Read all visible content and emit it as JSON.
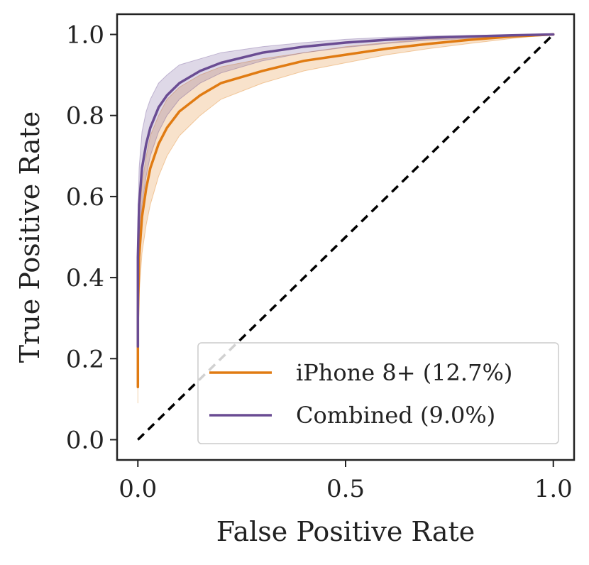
{
  "chart_data": {
    "type": "line",
    "title": "",
    "xlabel": "False Positive Rate",
    "ylabel": "True Positive Rate",
    "xlim": [
      -0.05,
      1.05
    ],
    "ylim": [
      -0.05,
      1.05
    ],
    "xticks": [
      0.0,
      0.5,
      1.0
    ],
    "xtick_labels": [
      "0.0",
      "0.5",
      "1.0"
    ],
    "yticks": [
      0.0,
      0.2,
      0.4,
      0.6,
      0.8,
      1.0
    ],
    "ytick_labels": [
      "0.0",
      "0.2",
      "0.4",
      "0.6",
      "0.8",
      "1.0"
    ],
    "grid": false,
    "legend_position": "lower-right",
    "reference_line": {
      "style": "dashed",
      "color": "#000000",
      "x": [
        0,
        1
      ],
      "y": [
        0,
        1
      ]
    },
    "series": [
      {
        "name": "iPhone 8+ (12.7%)",
        "color": "#e07b12",
        "x": [
          0.0,
          0.0,
          0.003,
          0.01,
          0.02,
          0.03,
          0.05,
          0.07,
          0.1,
          0.15,
          0.2,
          0.3,
          0.4,
          0.5,
          0.6,
          0.7,
          0.8,
          0.9,
          1.0
        ],
        "y": [
          0.13,
          0.3,
          0.45,
          0.55,
          0.62,
          0.67,
          0.73,
          0.77,
          0.81,
          0.85,
          0.88,
          0.91,
          0.935,
          0.95,
          0.965,
          0.977,
          0.987,
          0.995,
          1.0
        ],
        "lower": [
          0.09,
          0.22,
          0.36,
          0.46,
          0.53,
          0.58,
          0.65,
          0.7,
          0.75,
          0.8,
          0.84,
          0.88,
          0.91,
          0.93,
          0.95,
          0.965,
          0.978,
          0.99,
          1.0
        ],
        "upper": [
          0.17,
          0.38,
          0.53,
          0.63,
          0.7,
          0.75,
          0.8,
          0.84,
          0.87,
          0.9,
          0.92,
          0.94,
          0.955,
          0.97,
          0.98,
          0.988,
          0.994,
          0.998,
          1.0
        ]
      },
      {
        "name": "Combined (9.0%)",
        "color": "#6a4c93",
        "x": [
          0.0,
          0.0,
          0.003,
          0.01,
          0.02,
          0.03,
          0.05,
          0.07,
          0.1,
          0.15,
          0.2,
          0.3,
          0.4,
          0.5,
          0.6,
          0.7,
          0.8,
          0.9,
          1.0
        ],
        "y": [
          0.23,
          0.45,
          0.58,
          0.67,
          0.73,
          0.77,
          0.82,
          0.85,
          0.88,
          0.91,
          0.93,
          0.955,
          0.97,
          0.98,
          0.987,
          0.992,
          0.995,
          0.998,
          1.0
        ],
        "lower": [
          0.19,
          0.36,
          0.49,
          0.58,
          0.65,
          0.7,
          0.76,
          0.8,
          0.84,
          0.88,
          0.905,
          0.935,
          0.955,
          0.968,
          0.978,
          0.986,
          0.99,
          0.996,
          1.0
        ],
        "upper": [
          0.27,
          0.54,
          0.67,
          0.76,
          0.81,
          0.84,
          0.88,
          0.9,
          0.925,
          0.94,
          0.955,
          0.97,
          0.98,
          0.988,
          0.993,
          0.996,
          0.998,
          0.999,
          1.0
        ]
      }
    ]
  }
}
